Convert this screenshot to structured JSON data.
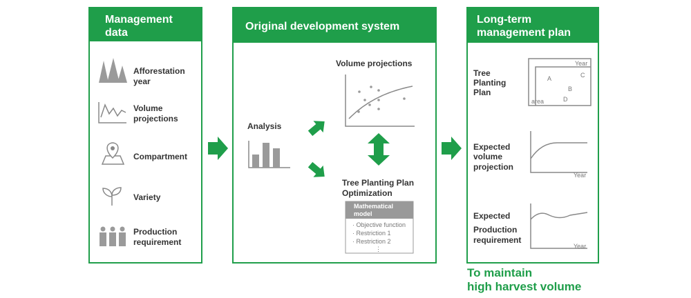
{
  "panels": [
    {
      "title": [
        "Management",
        "data"
      ],
      "items": [
        {
          "label": [
            "Afforestation",
            "year"
          ]
        },
        {
          "label": [
            "Volume",
            "projections"
          ]
        },
        {
          "label": [
            "Compartment"
          ]
        },
        {
          "label": [
            "Variety"
          ]
        },
        {
          "label": [
            "Production",
            "requirement"
          ]
        }
      ]
    },
    {
      "title": [
        "Original development system"
      ],
      "analysis": "Analysis",
      "volume_projections": "Volume projections",
      "optimization": [
        "Tree Planting Plan",
        "Optimization"
      ],
      "model": {
        "title": [
          "Mathematical",
          "model"
        ],
        "items": [
          "· Objective function",
          "· Restriction 1",
          "· Restriction 2",
          "⋮"
        ]
      }
    },
    {
      "title": [
        "Long-term",
        "management plan"
      ],
      "plans": [
        {
          "label": [
            "Tree",
            "Planting",
            "Plan"
          ],
          "axis_labels": [
            "Year",
            "area"
          ],
          "regions": [
            "A",
            "B",
            "C",
            "D"
          ]
        },
        {
          "label": [
            "Expected",
            "volume",
            "projection"
          ],
          "axis_label": "Year"
        },
        {
          "label": [
            "Expected",
            "Production",
            "requirement"
          ],
          "axis_label": "Year"
        }
      ]
    }
  ],
  "footer": [
    "To maintain",
    "high harvest volume"
  ]
}
